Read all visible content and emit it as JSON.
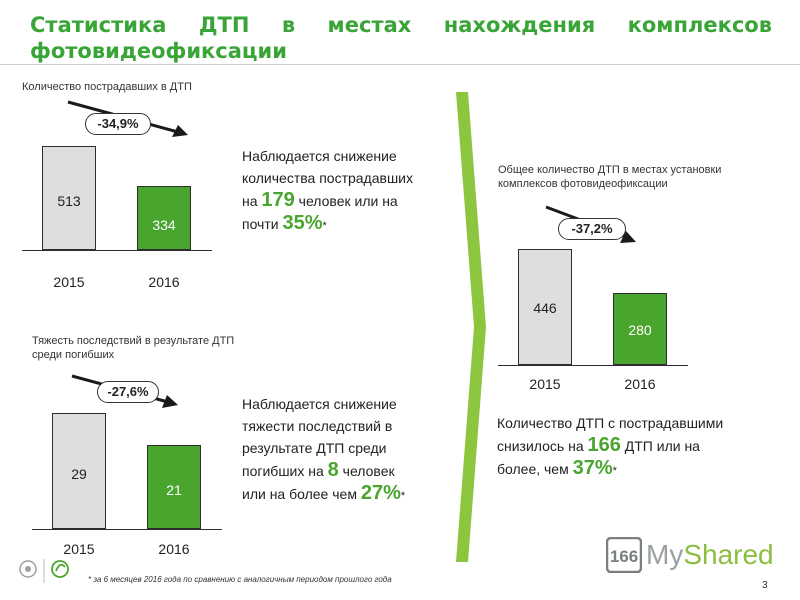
{
  "title": "Статистика ДТП в местах нахождения комплексов фотовидеофиксации",
  "charts": {
    "victims": {
      "caption": "Количество пострадавших в ДТП",
      "change": "-34,9%",
      "years": [
        "2015",
        "2016"
      ],
      "values": [
        513,
        334
      ],
      "labels": [
        "513",
        "334"
      ]
    },
    "fatalities": {
      "caption": "Тяжесть последствий в результате ДТП среди погибших",
      "change": "-27,6%",
      "years": [
        "2015",
        "2016"
      ],
      "values": [
        29,
        21
      ],
      "labels": [
        "29",
        "21"
      ]
    },
    "accidents": {
      "caption": "Общее количество ДТП в местах установки комплексов фотовидеофиксации",
      "change": "-37,2%",
      "years": [
        "2015",
        "2016"
      ],
      "values": [
        446,
        280
      ],
      "labels": [
        "446",
        "280"
      ]
    }
  },
  "notes": {
    "victims": {
      "line1": "Наблюдается снижение",
      "line2": "количества пострадавших",
      "pre3": "на ",
      "num": "179",
      "post3": " человек или на",
      "pre4": "почти ",
      "pct": "35%",
      "star": "*"
    },
    "fatalities": {
      "line1": "Наблюдается снижение",
      "line2": "тяжести последствий в",
      "line3": "результате ДТП среди",
      "pre4": "погибших на ",
      "num": "8",
      "post4": " человек",
      "pre5": "или на более чем ",
      "pct": "27%",
      "star": "*"
    },
    "accidents": {
      "line1": "Количество ДТП с пострадавшими",
      "pre2": "снизилось на ",
      "num": "166",
      "post2": " ДТП или на",
      "pre3": "более, чем ",
      "pct": "37%",
      "star": "*"
    }
  },
  "footnote": "* за 6 месяцев 2016 года по сравнению с аналогичным периодом прошлого года",
  "page_number": "3",
  "brand": {
    "prefix": "My",
    "suffix": "Shared",
    "number": "166"
  },
  "colors": {
    "accent": "#3aa537",
    "bar_green": "#4aa52e",
    "bar_gray": "#dedede"
  }
}
